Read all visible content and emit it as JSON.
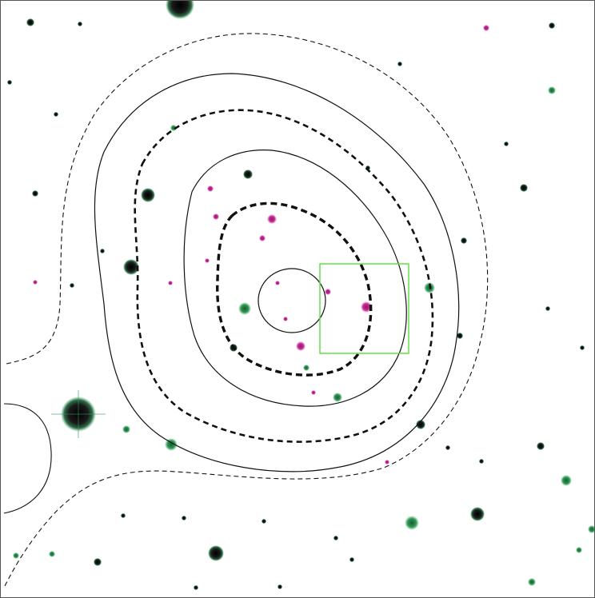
{
  "image": {
    "description_visible": "",
    "background_color": "#ffffff",
    "frame_color": "#555555"
  },
  "colors": {
    "contour": "#111111",
    "highlight_box": "#66dd44",
    "magenta": "#cc2a9a",
    "green": "#2e9a55",
    "dark": "#1a1a1a"
  },
  "sources": [
    {
      "kind": "dark",
      "size": "xl"
    },
    {
      "kind": "dark",
      "size": "l"
    },
    {
      "kind": "dark",
      "size": "l"
    },
    {
      "kind": "dark",
      "size": "m"
    },
    {
      "kind": "dark",
      "size": "m"
    },
    {
      "kind": "green",
      "size": "m"
    },
    {
      "kind": "green",
      "size": "m"
    },
    {
      "kind": "green",
      "size": "s"
    },
    {
      "kind": "magenta",
      "size": "s"
    }
  ]
}
